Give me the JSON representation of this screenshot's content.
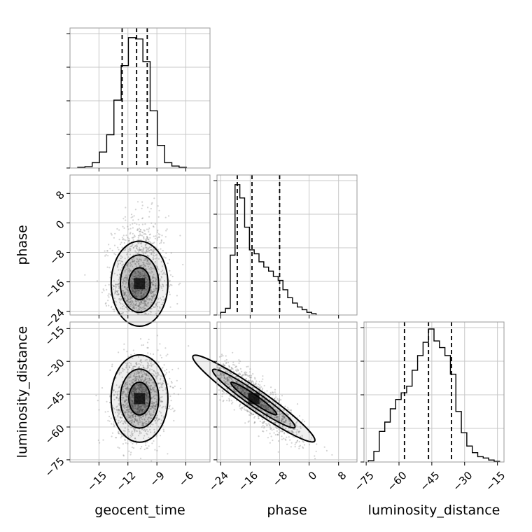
{
  "chart_data": {
    "type": "corner",
    "grid": true,
    "colors": {
      "hist": "#000000",
      "grid": "#c8c8c8",
      "frame": "#999999",
      "points": "#808080",
      "density": "#000000"
    },
    "parameters": [
      {
        "name": "geocent_time",
        "xlabel": "geocent_time",
        "ylabel": "",
        "range": [
          -18,
          -3.5
        ],
        "ticks": [
          -15,
          -12,
          -9,
          -6
        ],
        "tick_labels": [
          "−15",
          "−12",
          "−9",
          "−6"
        ],
        "quantiles": [
          -12.6,
          -11.1,
          -10.0
        ],
        "peak": -10.8
      },
      {
        "name": "phase",
        "xlabel": "phase",
        "ylabel": "phase",
        "range": [
          -25,
          13
        ],
        "ticks": [
          -24,
          -16,
          -8,
          0,
          8
        ],
        "tick_labels": [
          "−24",
          "−16",
          "−8",
          "0",
          "8"
        ],
        "quantiles": [
          -19.5,
          -15.5,
          -8.0
        ],
        "peak": -18.5
      },
      {
        "name": "luminosity_distance",
        "xlabel": "luminosity_distance",
        "ylabel": "luminosity_distance",
        "range": [
          -76,
          -12
        ],
        "ticks": [
          -75,
          -60,
          -45,
          -30,
          -15
        ],
        "tick_labels": [
          "−75",
          "−60",
          "−45",
          "−30",
          "−15"
        ],
        "quantiles": [
          -57.5,
          -46.5,
          -36.0
        ],
        "peak": -46.5
      }
    ],
    "histograms": [
      {
        "param": "geocent_time",
        "bin_edges": [
          -17.2,
          -16.45,
          -15.7,
          -14.95,
          -14.2,
          -13.45,
          -12.7,
          -11.95,
          -11.2,
          -10.45,
          -9.7,
          -8.95,
          -8.2,
          -7.45,
          -6.7,
          -5.95
        ],
        "counts": [
          0.005,
          0.01,
          0.04,
          0.12,
          0.25,
          0.51,
          0.77,
          0.98,
          0.97,
          0.8,
          0.43,
          0.17,
          0.04,
          0.015,
          0.005
        ]
      },
      {
        "param": "phase",
        "bin_edges": [
          -24.0,
          -22.7,
          -21.4,
          -20.1,
          -18.8,
          -17.5,
          -16.2,
          -14.9,
          -13.6,
          -12.3,
          -11.0,
          -9.7,
          -8.4,
          -7.1,
          -5.8,
          -4.5,
          -3.2,
          -1.9,
          -0.6,
          0.7,
          1.9
        ],
        "counts": [
          0.02,
          0.05,
          0.45,
          0.98,
          0.88,
          0.66,
          0.49,
          0.46,
          0.4,
          0.36,
          0.33,
          0.29,
          0.26,
          0.19,
          0.13,
          0.09,
          0.06,
          0.04,
          0.02,
          0.01
        ]
      },
      {
        "param": "luminosity_distance",
        "bin_edges": [
          -74.0,
          -71.5,
          -69.0,
          -66.5,
          -64.0,
          -61.5,
          -59.0,
          -56.5,
          -54.0,
          -51.5,
          -49.0,
          -46.5,
          -44.0,
          -41.5,
          -39.0,
          -36.5,
          -34.0,
          -31.5,
          -29.0,
          -26.5,
          -24.0,
          -21.5,
          -19.0,
          -16.5,
          -14.0
        ],
        "counts": [
          0.01,
          0.08,
          0.23,
          0.3,
          0.4,
          0.47,
          0.52,
          0.57,
          0.69,
          0.8,
          0.9,
          1.0,
          0.91,
          0.86,
          0.8,
          0.66,
          0.38,
          0.22,
          0.12,
          0.07,
          0.04,
          0.03,
          0.015,
          0.005
        ]
      }
    ],
    "pairs": [
      {
        "x": "geocent_time",
        "y": "phase",
        "correlation": 0.05,
        "center": [
          -10.8,
          -16.5
        ],
        "sigma": [
          1.4,
          5.5
        ],
        "skew_y": "up"
      },
      {
        "x": "geocent_time",
        "y": "luminosity_distance",
        "correlation": 0.1,
        "center": [
          -10.8,
          -47.0
        ],
        "sigma": [
          1.4,
          9.5
        ]
      },
      {
        "x": "phase",
        "y": "luminosity_distance",
        "correlation": -0.88,
        "center": [
          -15.0,
          -47.0
        ],
        "sigma": [
          6.5,
          9.5
        ]
      }
    ]
  }
}
